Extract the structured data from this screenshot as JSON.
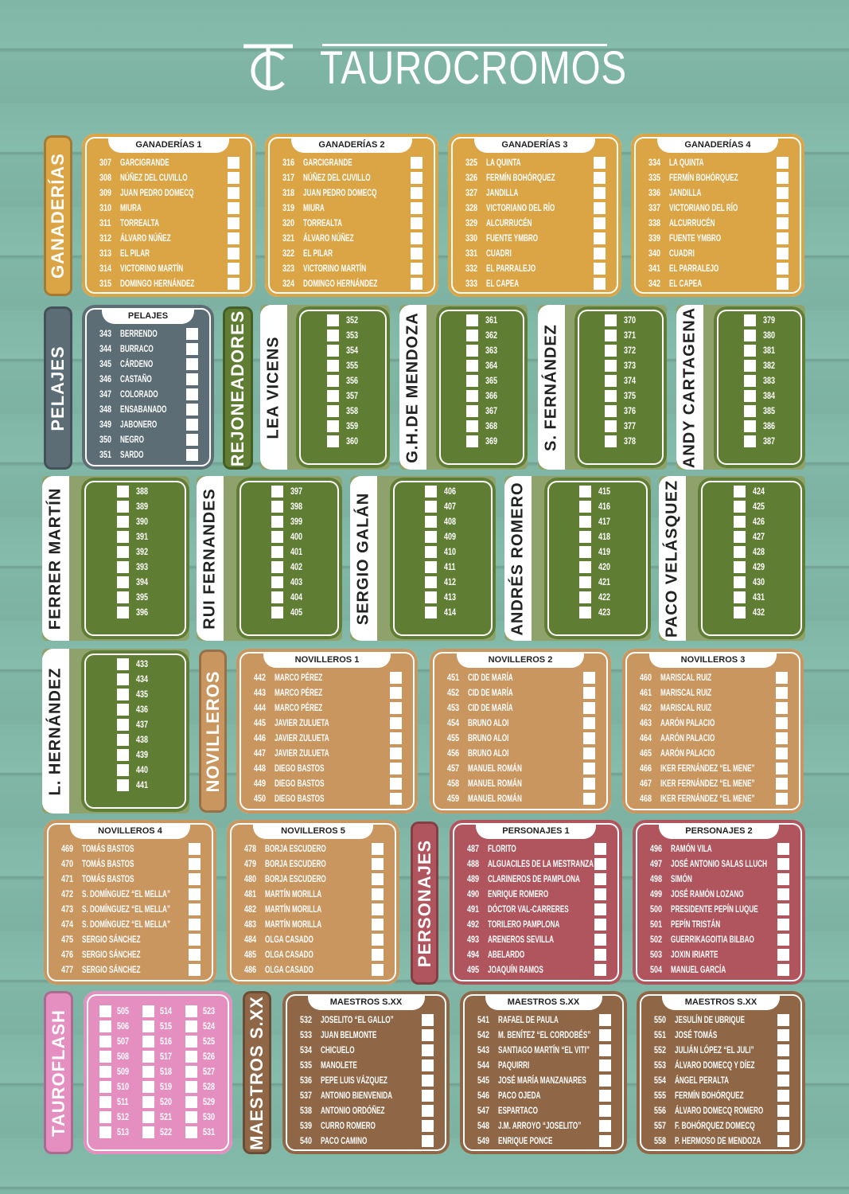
{
  "header": {
    "logo": "TC",
    "title": "TAUROCROMOS"
  },
  "colors": {
    "background": "#80b6a6",
    "ganaderias": "#dba546",
    "pelajes": "#5d6d76",
    "rejoneadores": "#5f7d33",
    "novilleros": "#c99660",
    "personajes": "#b0555d",
    "tauroflash": "#e58fc0",
    "maestros": "#8f6646"
  },
  "categories": {
    "ganaderias": "GANADERÍAS",
    "pelajes": "PELAJES",
    "rejoneadores": "REJONEADORES",
    "novilleros": "NOVILLEROS",
    "personajes": "PERSONAJES",
    "tauroflash": "TAUROFLASH",
    "maestros": "MAESTROS S.XX"
  },
  "cards": {
    "gan1": {
      "title": "GANADERÍAS 1",
      "items": [
        [
          "307",
          "GARCIGRANDE"
        ],
        [
          "308",
          "NÚÑEZ DEL CUVILLO"
        ],
        [
          "309",
          "JUAN PEDRO DOMECQ"
        ],
        [
          "310",
          "MIURA"
        ],
        [
          "311",
          "TORREALTA"
        ],
        [
          "312",
          "ÁLVARO NÚÑEZ"
        ],
        [
          "313",
          "EL PILAR"
        ],
        [
          "314",
          "VICTORINO MARTÍN"
        ],
        [
          "315",
          "DOMINGO HERNÁNDEZ"
        ]
      ]
    },
    "gan2": {
      "title": "GANADERÍAS 2",
      "items": [
        [
          "316",
          "GARCIGRANDE"
        ],
        [
          "317",
          "NÚÑEZ DEL CUVILLO"
        ],
        [
          "318",
          "JUAN PEDRO DOMECQ"
        ],
        [
          "319",
          "MIURA"
        ],
        [
          "320",
          "TORREALTA"
        ],
        [
          "321",
          "ÁLVARO NÚÑEZ"
        ],
        [
          "322",
          "EL PILAR"
        ],
        [
          "323",
          "VICTORINO MARTÍN"
        ],
        [
          "324",
          "DOMINGO HERNÁNDEZ"
        ]
      ]
    },
    "gan3": {
      "title": "GANADERÍAS 3",
      "items": [
        [
          "325",
          "LA QUINTA"
        ],
        [
          "326",
          "FERMÍN BOHÓRQUEZ"
        ],
        [
          "327",
          "JANDILLA"
        ],
        [
          "328",
          "VICTORIANO DEL RÍO"
        ],
        [
          "329",
          "ALCURRUCÉN"
        ],
        [
          "330",
          "FUENTE YMBRO"
        ],
        [
          "331",
          "CUADRI"
        ],
        [
          "332",
          "EL PARRALEJO"
        ],
        [
          "333",
          "EL CAPEA"
        ]
      ]
    },
    "gan4": {
      "title": "GANADERÍAS 4",
      "items": [
        [
          "334",
          "LA QUINTA"
        ],
        [
          "335",
          "FERMÍN BOHÓRQUEZ"
        ],
        [
          "336",
          "JANDILLA"
        ],
        [
          "337",
          "VICTORIANO DEL RÍO"
        ],
        [
          "338",
          "ALCURRUCÉN"
        ],
        [
          "339",
          "FUENTE YMBRO"
        ],
        [
          "340",
          "CUADRI"
        ],
        [
          "341",
          "EL PARRALEJO"
        ],
        [
          "342",
          "EL CAPEA"
        ]
      ]
    },
    "pel": {
      "title": "PELAJES",
      "items": [
        [
          "343",
          "BERRENDO"
        ],
        [
          "344",
          "BURRACO"
        ],
        [
          "345",
          "CÁRDENO"
        ],
        [
          "346",
          "CASTAÑO"
        ],
        [
          "347",
          "COLORADO"
        ],
        [
          "348",
          "ENSABANADO"
        ],
        [
          "349",
          "JABONERO"
        ],
        [
          "350",
          "NEGRO"
        ],
        [
          "351",
          "SARDO"
        ]
      ]
    },
    "nov1": {
      "title": "NOVILLEROS 1",
      "items": [
        [
          "442",
          "MARCO PÉREZ"
        ],
        [
          "443",
          "MARCO PÉREZ"
        ],
        [
          "444",
          "MARCO PÉREZ"
        ],
        [
          "445",
          "JAVIER ZULUETA"
        ],
        [
          "446",
          "JAVIER ZULUETA"
        ],
        [
          "447",
          "JAVIER ZULUETA"
        ],
        [
          "448",
          "DIEGO BASTOS"
        ],
        [
          "449",
          "DIEGO BASTOS"
        ],
        [
          "450",
          "DIEGO BASTOS"
        ]
      ]
    },
    "nov2": {
      "title": "NOVILLEROS 2",
      "items": [
        [
          "451",
          "CID DE MARÍA"
        ],
        [
          "452",
          "CID DE MARÍA"
        ],
        [
          "453",
          "CID DE MARÍA"
        ],
        [
          "454",
          "BRUNO ALOI"
        ],
        [
          "455",
          "BRUNO ALOI"
        ],
        [
          "456",
          "BRUNO ALOI"
        ],
        [
          "457",
          "MANUEL ROMÁN"
        ],
        [
          "458",
          "MANUEL ROMÁN"
        ],
        [
          "459",
          "MANUEL ROMÁN"
        ]
      ]
    },
    "nov3": {
      "title": "NOVILLEROS 3",
      "items": [
        [
          "460",
          "MARISCAL RUIZ"
        ],
        [
          "461",
          "MARISCAL RUIZ"
        ],
        [
          "462",
          "MARISCAL RUIZ"
        ],
        [
          "463",
          "AARÓN PALACIO"
        ],
        [
          "464",
          "AARÓN PALACIO"
        ],
        [
          "465",
          "AARÓN PALACIO"
        ],
        [
          "466",
          "IKER FERNÁNDEZ “EL MENE”"
        ],
        [
          "467",
          "IKER FERNÁNDEZ “EL MENE”"
        ],
        [
          "468",
          "IKER FERNÁNDEZ “EL MENE”"
        ]
      ]
    },
    "nov4": {
      "title": "NOVILLEROS 4",
      "items": [
        [
          "469",
          "TOMÁS BASTOS"
        ],
        [
          "470",
          "TOMÁS BASTOS"
        ],
        [
          "471",
          "TOMÁS BASTOS"
        ],
        [
          "472",
          "S. DOMÍNGUEZ “EL MELLA”"
        ],
        [
          "473",
          "S. DOMÍNGUEZ “EL MELLA”"
        ],
        [
          "474",
          "S. DOMÍNGUEZ “EL MELLA”"
        ],
        [
          "475",
          "SERGIO SÁNCHEZ"
        ],
        [
          "476",
          "SERGIO SÁNCHEZ"
        ],
        [
          "477",
          "SERGIO SÁNCHEZ"
        ]
      ]
    },
    "nov5": {
      "title": "NOVILLEROS 5",
      "items": [
        [
          "478",
          "BORJA ESCUDERO"
        ],
        [
          "479",
          "BORJA ESCUDERO"
        ],
        [
          "480",
          "BORJA ESCUDERO"
        ],
        [
          "481",
          "MARTÍN MORILLA"
        ],
        [
          "482",
          "MARTÍN MORILLA"
        ],
        [
          "483",
          "MARTÍN MORILLA"
        ],
        [
          "484",
          "OLGA CASADO"
        ],
        [
          "485",
          "OLGA CASADO"
        ],
        [
          "486",
          "OLGA CASADO"
        ]
      ]
    },
    "per1": {
      "title": "PERSONAJES 1",
      "items": [
        [
          "487",
          "FLORITO"
        ],
        [
          "488",
          "ALGUACILES DE LA MESTRANZA"
        ],
        [
          "489",
          "CLARINEROS DE PAMPLONA"
        ],
        [
          "490",
          "ENRIQUE ROMERO"
        ],
        [
          "491",
          "DÓCTOR VAL-CARRERES"
        ],
        [
          "492",
          "TORILERO PAMPLONA"
        ],
        [
          "493",
          "ARENEROS SEVILLA"
        ],
        [
          "494",
          "ABELARDO"
        ],
        [
          "495",
          "JOAQUÍN RAMOS"
        ]
      ]
    },
    "per2": {
      "title": "PERSONAJES 2",
      "items": [
        [
          "496",
          "RAMÓN VILA"
        ],
        [
          "497",
          "JOSÉ ANTONIO SALAS LLUCH"
        ],
        [
          "498",
          "SIMÓN"
        ],
        [
          "499",
          "JOSÉ RAMÓN LOZANO"
        ],
        [
          "500",
          "PRESIDENTE PEPÍN LUQUE"
        ],
        [
          "501",
          "PEPÍN TRISTÁN"
        ],
        [
          "502",
          "GUERRIKAGOITIA BILBAO"
        ],
        [
          "503",
          "JOXIN IRIARTE"
        ],
        [
          "504",
          "MANUEL GARCÍA"
        ]
      ]
    },
    "mae1": {
      "title": "MAESTROS S.XX",
      "items": [
        [
          "532",
          "JOSELITO “EL GALLO”"
        ],
        [
          "533",
          "JUAN BELMONTE"
        ],
        [
          "534",
          "CHICUELO"
        ],
        [
          "535",
          "MANOLETE"
        ],
        [
          "536",
          "PEPE LUIS VÁZQUEZ"
        ],
        [
          "537",
          "ANTONIO BIENVENIDA"
        ],
        [
          "538",
          "ANTONIO ORDÓÑEZ"
        ],
        [
          "539",
          "CURRO ROMERO"
        ],
        [
          "540",
          "PACO CAMINO"
        ]
      ]
    },
    "mae2": {
      "title": "MAESTROS S.XX",
      "items": [
        [
          "541",
          "RAFAEL DE PAULA"
        ],
        [
          "542",
          "M. BENÍTEZ “EL CORDOBÉS”"
        ],
        [
          "543",
          "SANTIAGO MARTÍN “EL VITI”"
        ],
        [
          "544",
          "PAQUIRRI"
        ],
        [
          "545",
          "JOSÉ MARÍA MANZANARES"
        ],
        [
          "546",
          "PACO OJEDA"
        ],
        [
          "547",
          "ESPARTACO"
        ],
        [
          "548",
          "J.M. ARROYO “JOSELITO”"
        ],
        [
          "549",
          "ENRIQUE PONCE"
        ]
      ]
    },
    "mae3": {
      "title": "MAESTROS S.XX",
      "items": [
        [
          "550",
          "JESULÍN DE UBRIQUE"
        ],
        [
          "551",
          "JOSÉ TOMÁS"
        ],
        [
          "552",
          "JULIÁN LÓPEZ “EL JULI”"
        ],
        [
          "553",
          "ÁLVARO DOMECQ Y DÍEZ"
        ],
        [
          "554",
          "ÁNGEL PERALTA"
        ],
        [
          "555",
          "FERMÍN BOHÓRQUEZ"
        ],
        [
          "556",
          "ÁLVARO DOMECQ ROMERO"
        ],
        [
          "557",
          "F. BOHÓRQUEZ DOMECQ"
        ],
        [
          "558",
          "P. HERMOSO DE MENDOZA"
        ]
      ]
    }
  },
  "riders": {
    "lea": {
      "name": "LEA VICENS",
      "nums": [
        "352",
        "353",
        "354",
        "355",
        "356",
        "357",
        "358",
        "359",
        "360"
      ]
    },
    "ghm": {
      "name": "G.H.DE MENDOZA",
      "nums": [
        "361",
        "362",
        "363",
        "364",
        "365",
        "366",
        "367",
        "368",
        "369"
      ]
    },
    "sfe": {
      "name": "S. FERNÁNDEZ",
      "nums": [
        "370",
        "371",
        "372",
        "373",
        "374",
        "375",
        "376",
        "377",
        "378"
      ]
    },
    "and": {
      "name": "ANDY CARTAGENA",
      "nums": [
        "379",
        "380",
        "381",
        "382",
        "383",
        "384",
        "385",
        "386",
        "387"
      ]
    },
    "fer": {
      "name": "FERRER MARTÍN",
      "nums": [
        "388",
        "389",
        "390",
        "391",
        "392",
        "393",
        "394",
        "395",
        "396"
      ]
    },
    "rui": {
      "name": "RUI FERNANDES",
      "nums": [
        "397",
        "398",
        "399",
        "400",
        "401",
        "402",
        "403",
        "404",
        "405"
      ]
    },
    "ser": {
      "name": "SERGIO GALÁN",
      "nums": [
        "406",
        "407",
        "408",
        "409",
        "410",
        "411",
        "412",
        "413",
        "414"
      ]
    },
    "anr": {
      "name": "ANDRÉS ROMERO",
      "nums": [
        "415",
        "416",
        "417",
        "418",
        "419",
        "420",
        "421",
        "422",
        "423"
      ]
    },
    "pac": {
      "name": "PACO VELÁSQUEZ",
      "nums": [
        "424",
        "425",
        "426",
        "427",
        "428",
        "429",
        "430",
        "431",
        "432"
      ]
    },
    "lhe": {
      "name": "L. HERNÁNDEZ",
      "nums": [
        "433",
        "434",
        "435",
        "436",
        "437",
        "438",
        "439",
        "440",
        "441"
      ]
    }
  },
  "tauroflash": {
    "columns": [
      [
        "505",
        "506",
        "507",
        "508",
        "509",
        "510",
        "511",
        "512",
        "513"
      ],
      [
        "514",
        "515",
        "516",
        "517",
        "518",
        "519",
        "520",
        "521",
        "522"
      ],
      [
        "523",
        "524",
        "525",
        "526",
        "527",
        "528",
        "529",
        "530",
        "531"
      ]
    ]
  }
}
